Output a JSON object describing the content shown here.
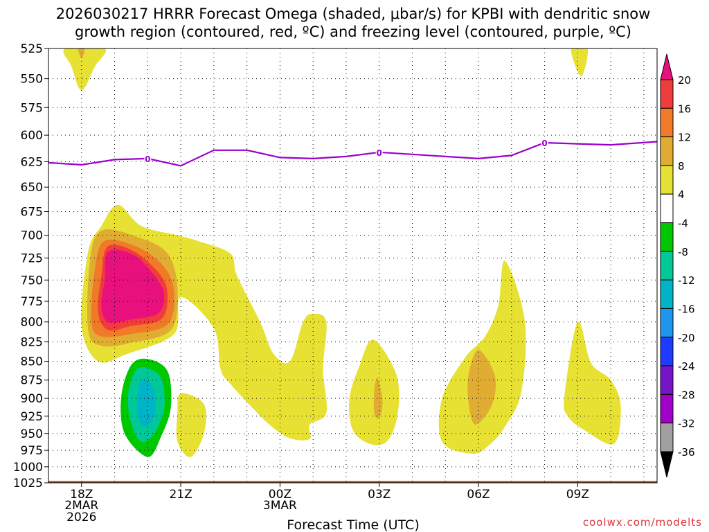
{
  "chart_data": {
    "type": "contour",
    "title_line1": "2026030217 HRRR Forecast Omega (shaded, μbar/s) for KPBI with dendritic snow",
    "title_line2": "growth region (contoured, red, ºC) and freezing level (contoured, purple, ºC)",
    "xlabel": "Forecast Time (UTC)",
    "credit": "coolwx.com/modelts",
    "yaxis": {
      "levels": [
        525,
        550,
        575,
        600,
        625,
        650,
        675,
        700,
        725,
        750,
        775,
        800,
        825,
        850,
        875,
        900,
        925,
        950,
        975,
        1000,
        1025
      ],
      "labels": [
        "525",
        "550",
        "575",
        "600",
        "625",
        "650",
        "675",
        "700",
        "725",
        "750",
        "775",
        "800",
        "825",
        "850",
        "875",
        "900",
        "925",
        "950",
        "975",
        "1000",
        "1025"
      ],
      "range": [
        525,
        1025
      ],
      "scale": "log-pressure",
      "grid": true
    },
    "xaxis": {
      "range_hours": [
        -1,
        17.4
      ],
      "ticks": [
        {
          "hour": 0,
          "label": "18Z",
          "date": "2MAR",
          "year": "2026"
        },
        {
          "hour": 3,
          "label": "21Z",
          "date": "",
          "year": ""
        },
        {
          "hour": 6,
          "label": "00Z",
          "date": "3MAR",
          "year": ""
        },
        {
          "hour": 9,
          "label": "03Z",
          "date": "",
          "year": ""
        },
        {
          "hour": 12,
          "label": "06Z",
          "date": "",
          "year": ""
        },
        {
          "hour": 15,
          "label": "09Z",
          "date": "",
          "year": ""
        }
      ]
    },
    "colorbar": {
      "ticks": [
        "20",
        "16",
        "12",
        "8",
        "4",
        "-4",
        "-8",
        "-12",
        "-16",
        "-20",
        "-24",
        "-28",
        "-32",
        "-36"
      ],
      "bins": [
        {
          "range": ">20",
          "color": "#e8107d"
        },
        {
          "range": "16 to 20",
          "color": "#f03c3c"
        },
        {
          "range": "12 to 16",
          "color": "#f07a28"
        },
        {
          "range": "8 to 12",
          "color": "#e1ac32"
        },
        {
          "range": "4 to 8",
          "color": "#e6e132"
        },
        {
          "range": "-4 to 4",
          "color": "#ffffff"
        },
        {
          "range": "-8 to -4",
          "color": "#00c800"
        },
        {
          "range": "-12 to -8",
          "color": "#00c896"
        },
        {
          "range": "-16 to -12",
          "color": "#00b4c8"
        },
        {
          "range": "-20 to -16",
          "color": "#1e96f0"
        },
        {
          "range": "-24 to -20",
          "color": "#1e3cff"
        },
        {
          "range": "-28 to -24",
          "color": "#7814c8"
        },
        {
          "range": "-32 to -28",
          "color": "#a000c8"
        },
        {
          "range": "-36 to -32",
          "color": "#a0a0a0"
        },
        {
          "range": "<-36",
          "color": "#000000"
        }
      ]
    },
    "freezing_level": {
      "color": "#9900cc",
      "label": "0",
      "label_hours": [
        2.0,
        9.0,
        14.0
      ],
      "points": [
        [
          -1,
          626
        ],
        [
          0,
          628
        ],
        [
          1,
          623
        ],
        [
          2,
          622
        ],
        [
          3,
          629
        ],
        [
          4,
          614
        ],
        [
          5,
          614
        ],
        [
          6,
          621
        ],
        [
          7,
          622
        ],
        [
          8,
          620
        ],
        [
          9,
          616
        ],
        [
          10,
          618
        ],
        [
          11,
          620
        ],
        [
          12,
          622
        ],
        [
          13,
          619
        ],
        [
          14,
          607
        ],
        [
          15,
          608
        ],
        [
          16,
          609
        ],
        [
          17.4,
          606
        ]
      ]
    },
    "omega_regions": [
      {
        "value": 6,
        "color": "#e6e132",
        "points": [
          [
            -0.5,
            525
          ],
          [
            0.7,
            525
          ],
          [
            0.4,
            540
          ],
          [
            0,
            560
          ],
          [
            -0.3,
            540
          ]
        ]
      },
      {
        "value": 10,
        "color": "#e1ac32",
        "points": [
          [
            -0.1,
            525
          ],
          [
            0.1,
            525
          ],
          [
            0,
            533
          ]
        ]
      },
      {
        "value": 6,
        "color": "#e6e132",
        "points": [
          [
            14.8,
            525
          ],
          [
            15.3,
            525
          ],
          [
            15.1,
            548
          ]
        ]
      },
      {
        "value": 6,
        "color": "#e6e132",
        "points": [
          [
            1.1,
            668
          ],
          [
            1.8,
            690
          ],
          [
            2.9,
            700
          ],
          [
            3.5,
            706
          ],
          [
            4.5,
            720
          ],
          [
            4.7,
            745
          ],
          [
            5.4,
            800
          ],
          [
            5.8,
            840
          ],
          [
            6.3,
            850
          ],
          [
            6.7,
            800
          ],
          [
            7.0,
            790
          ],
          [
            7.4,
            800
          ],
          [
            7.3,
            860
          ],
          [
            7.4,
            920
          ],
          [
            6.9,
            937
          ],
          [
            6.9,
            958
          ],
          [
            6.3,
            957
          ],
          [
            5.7,
            938
          ],
          [
            5.1,
            910
          ],
          [
            4.5,
            880
          ],
          [
            4.2,
            860
          ],
          [
            4.0,
            808
          ],
          [
            3.0,
            770
          ],
          [
            2.8,
            815
          ],
          [
            1.4,
            840
          ],
          [
            0.5,
            850
          ],
          [
            0,
            805
          ],
          [
            0.2,
            718
          ],
          [
            0.6,
            690
          ]
        ]
      },
      {
        "value": 10,
        "color": "#e1ac32",
        "points": [
          [
            0.6,
            695
          ],
          [
            1.7,
            702
          ],
          [
            2.6,
            720
          ],
          [
            2.9,
            760
          ],
          [
            2.7,
            810
          ],
          [
            1.5,
            826
          ],
          [
            0.6,
            830
          ],
          [
            0.2,
            810
          ],
          [
            0.25,
            730
          ]
        ]
      },
      {
        "value": 14,
        "color": "#f07a28",
        "points": [
          [
            0.7,
            706
          ],
          [
            1.7,
            713
          ],
          [
            2.5,
            735
          ],
          [
            2.8,
            765
          ],
          [
            2.6,
            803
          ],
          [
            1.5,
            815
          ],
          [
            0.6,
            818
          ],
          [
            0.3,
            800
          ],
          [
            0.4,
            738
          ]
        ]
      },
      {
        "value": 18,
        "color": "#f03c3c",
        "points": [
          [
            0.8,
            712
          ],
          [
            1.6,
            718
          ],
          [
            2.4,
            745
          ],
          [
            2.6,
            770
          ],
          [
            2.4,
            797
          ],
          [
            1.5,
            805
          ],
          [
            0.8,
            810
          ],
          [
            0.5,
            788
          ],
          [
            0.6,
            745
          ]
        ]
      },
      {
        "value": 22,
        "color": "#e8107d",
        "points": [
          [
            0.8,
            718
          ],
          [
            1.6,
            722
          ],
          [
            2.3,
            750
          ],
          [
            2.5,
            770
          ],
          [
            2.3,
            790
          ],
          [
            1.5,
            797
          ],
          [
            0.8,
            800
          ],
          [
            0.6,
            780
          ],
          [
            0.7,
            750
          ]
        ]
      },
      {
        "value": 6,
        "color": "#e6e132",
        "points": [
          [
            8.8,
            822
          ],
          [
            9.4,
            855
          ],
          [
            9.6,
            890
          ],
          [
            9.5,
            935
          ],
          [
            9.2,
            963
          ],
          [
            8.7,
            965
          ],
          [
            8.2,
            945
          ],
          [
            8.1,
            900
          ],
          [
            8.4,
            856
          ]
        ]
      },
      {
        "value": 10,
        "color": "#e1ac32",
        "points": [
          [
            8.95,
            872
          ],
          [
            9.1,
            905
          ],
          [
            9.0,
            927
          ],
          [
            8.85,
            922
          ],
          [
            8.85,
            890
          ]
        ]
      },
      {
        "value": 6,
        "color": "#e6e132",
        "points": [
          [
            12.8,
            728
          ],
          [
            13.4,
            798
          ],
          [
            13.3,
            890
          ],
          [
            12.8,
            940
          ],
          [
            12.3,
            968
          ],
          [
            11.8,
            980
          ],
          [
            10.9,
            962
          ],
          [
            10.9,
            900
          ],
          [
            11.6,
            845
          ],
          [
            12.2,
            818
          ],
          [
            12.6,
            780
          ]
        ]
      },
      {
        "value": 10,
        "color": "#e1ac32",
        "points": [
          [
            12.0,
            835
          ],
          [
            12.5,
            870
          ],
          [
            12.4,
            910
          ],
          [
            11.9,
            937
          ],
          [
            11.7,
            905
          ],
          [
            11.7,
            868
          ]
        ]
      },
      {
        "value": 6,
        "color": "#e6e132",
        "points": [
          [
            15.0,
            800
          ],
          [
            15.4,
            852
          ],
          [
            16.0,
            875
          ],
          [
            16.3,
            910
          ],
          [
            16.1,
            965
          ],
          [
            15.2,
            945
          ],
          [
            14.7,
            925
          ],
          [
            14.6,
            897
          ]
        ]
      },
      {
        "value": 6,
        "color": "#e6e132",
        "points": [
          [
            3.0,
            893
          ],
          [
            3.7,
            908
          ],
          [
            3.7,
            950
          ],
          [
            3.3,
            985
          ],
          [
            2.9,
            962
          ],
          [
            2.9,
            920
          ]
        ]
      },
      {
        "value": -6,
        "color": "#00c800",
        "points": [
          [
            2.0,
            847
          ],
          [
            2.6,
            863
          ],
          [
            2.7,
            912
          ],
          [
            2.4,
            955
          ],
          [
            2.0,
            985
          ],
          [
            1.3,
            950
          ],
          [
            1.2,
            898
          ],
          [
            1.5,
            855
          ]
        ]
      },
      {
        "value": -10,
        "color": "#00c896",
        "points": [
          [
            1.9,
            858
          ],
          [
            2.4,
            872
          ],
          [
            2.5,
            912
          ],
          [
            2.2,
            950
          ],
          [
            1.8,
            962
          ],
          [
            1.5,
            935
          ],
          [
            1.4,
            898
          ],
          [
            1.6,
            865
          ]
        ]
      },
      {
        "value": -14,
        "color": "#00b4c8",
        "points": [
          [
            1.9,
            873
          ],
          [
            2.2,
            890
          ],
          [
            2.2,
            925
          ],
          [
            1.9,
            940
          ],
          [
            1.7,
            925
          ],
          [
            1.7,
            890
          ]
        ]
      }
    ],
    "ground_strip": {
      "color": "#a0522d",
      "from_pressure": 1020,
      "to_pressure": 1025
    }
  }
}
